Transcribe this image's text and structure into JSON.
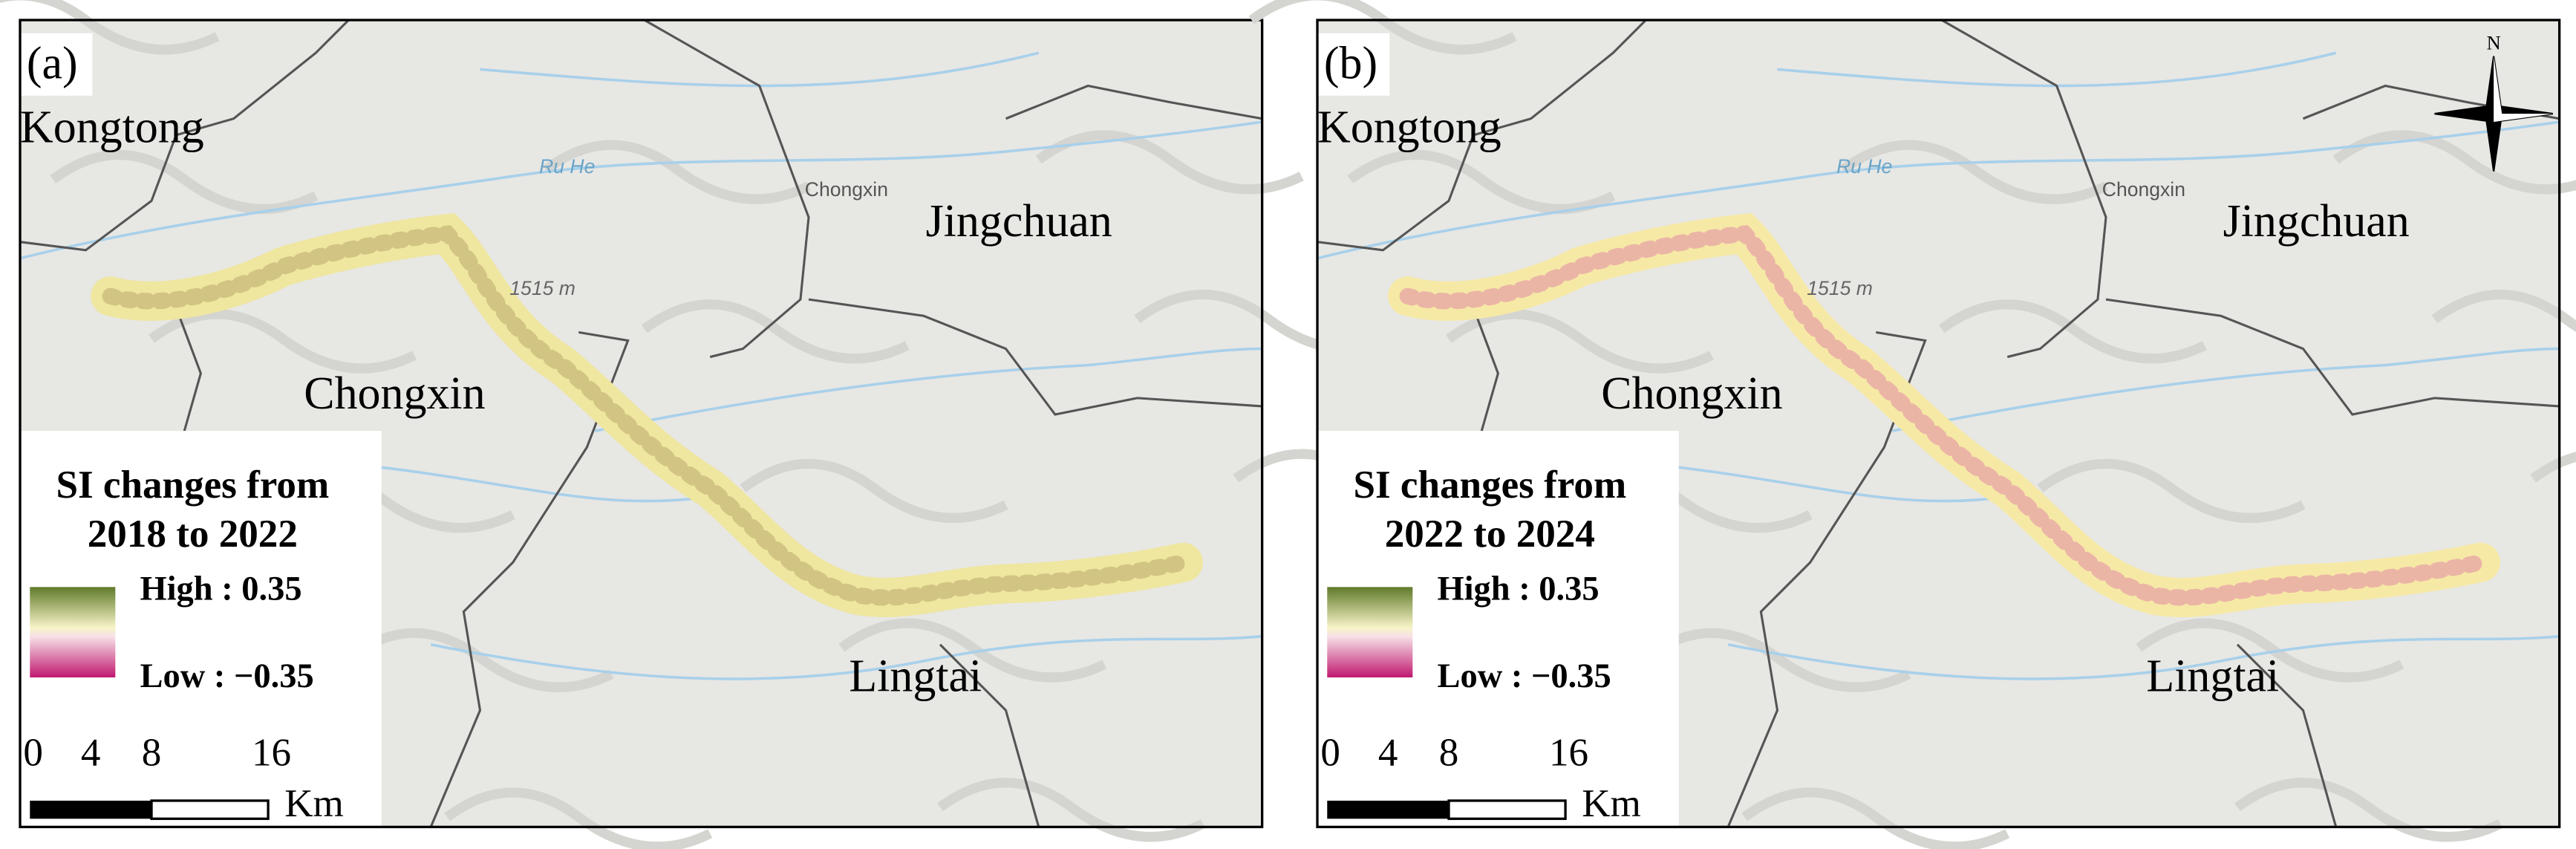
{
  "panels": [
    {
      "label": "(a)",
      "places": [
        "Kongtong",
        "Jingchuan",
        "Chongxin",
        "Lingtai"
      ],
      "map_labels": [
        "Ru He",
        "Chongxin",
        "1515 m"
      ],
      "legend": {
        "title": [
          "SI changes from",
          "2018 to 2022"
        ],
        "high": "High : 0.35",
        "low": "Low : −0.35"
      },
      "scale_bar": {
        "ticks": [
          0,
          4,
          8,
          16
        ],
        "unit": "Km"
      }
    },
    {
      "label": "(b)",
      "places": [
        "Kongtong",
        "Jingchuan",
        "Chongxin",
        "Lingtai"
      ],
      "map_labels": [
        "Ru He",
        "Chongxin",
        "1515 m"
      ],
      "legend": {
        "title": [
          "SI changes from",
          "2022 to 2024"
        ],
        "high": "High : 0.35",
        "low": "Low : −0.35"
      },
      "scale_bar": {
        "ticks": [
          0,
          4,
          8,
          16
        ],
        "unit": "Km"
      },
      "north": "N"
    }
  ]
}
